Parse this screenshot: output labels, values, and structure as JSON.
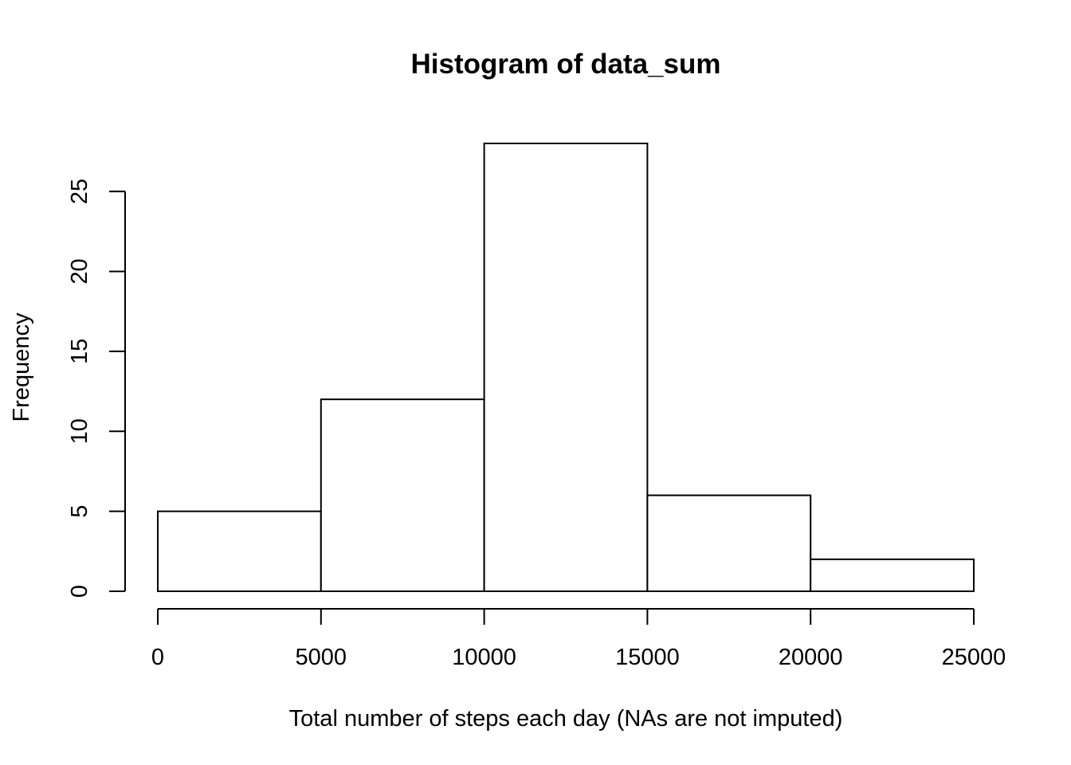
{
  "chart_data": {
    "type": "bar",
    "title": "Histogram of data_sum",
    "xlabel": "Total number of steps each day (NAs are not imputed)",
    "ylabel": "Frequency",
    "bins": [
      {
        "from": 0,
        "to": 5000,
        "count": 5
      },
      {
        "from": 5000,
        "to": 10000,
        "count": 12
      },
      {
        "from": 10000,
        "to": 15000,
        "count": 28
      },
      {
        "from": 15000,
        "to": 20000,
        "count": 6
      },
      {
        "from": 20000,
        "to": 25000,
        "count": 2
      }
    ],
    "xlim": [
      0,
      25000
    ],
    "ylim": [
      0,
      28
    ],
    "xticks": [
      0,
      5000,
      10000,
      15000,
      20000,
      25000
    ],
    "yticks": [
      0,
      5,
      10,
      15,
      20,
      25
    ],
    "grid": false,
    "colors": {
      "bar_fill": "#ffffff",
      "bar_stroke": "#000000"
    }
  }
}
